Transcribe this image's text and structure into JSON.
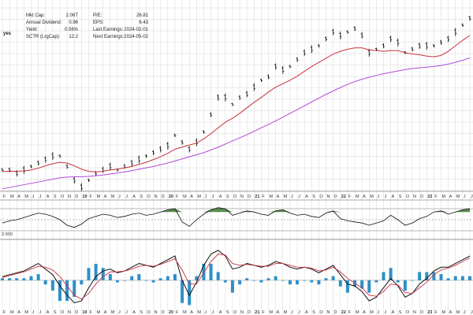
{
  "fundamentals": {
    "left": [
      {
        "label": "Mkt Cap:",
        "value": "2.06T"
      },
      {
        "label": "Annual Dividend:",
        "value": "0.96"
      },
      {
        "label": "Yield:",
        "value": "0.56%"
      },
      {
        "label": "SCTR (LrgCap):",
        "value": "12.2"
      }
    ],
    "right": [
      {
        "label": "P/E:",
        "value": "26.81"
      },
      {
        "label": "EPS:",
        "value": "6.43"
      },
      {
        "label": "Last Earnings:",
        "value": "2024-02-01"
      },
      {
        "label": "Next Earnings:",
        "value": "2024-05-02"
      }
    ],
    "fragment": "yes"
  },
  "macd_label_fragment": "2.000",
  "colors": {
    "price": "#111111",
    "ma_short": "#c8323c",
    "ma_long": "#b04bd9",
    "histogram": "#2f8fc6",
    "rsi_fill": "#3a7a2e",
    "grid": "#d6d6d6"
  },
  "chart_data": {
    "type": "line",
    "title": "",
    "x": [
      "2018-02",
      "2018-03",
      "2018-04",
      "2018-05",
      "2018-06",
      "2018-07",
      "2018-08",
      "2018-09",
      "2018-10",
      "2018-11",
      "2018-12",
      "2019-01",
      "2019-02",
      "2019-03",
      "2019-04",
      "2019-05",
      "2019-06",
      "2019-07",
      "2019-08",
      "2019-09",
      "2019-10",
      "2019-11",
      "2019-12",
      "2020-01",
      "2020-02",
      "2020-03",
      "2020-04",
      "2020-05",
      "2020-06",
      "2020-07",
      "2020-08",
      "2020-09",
      "2020-10",
      "2020-11",
      "2020-12",
      "2021-01",
      "2021-02",
      "2021-03",
      "2021-04",
      "2021-05",
      "2021-06",
      "2021-07",
      "2021-08",
      "2021-09",
      "2021-10",
      "2021-11",
      "2021-12",
      "2022-01",
      "2022-02",
      "2022-03",
      "2022-04",
      "2022-05",
      "2022-06",
      "2022-07",
      "2022-08",
      "2022-09",
      "2022-10",
      "2022-11",
      "2022-12",
      "2023-01",
      "2023-02",
      "2023-03",
      "2023-04",
      "2023-05",
      "2023-06",
      "2023-07"
    ],
    "x_ticks": [
      {
        "label": "F",
        "year": false
      },
      {
        "label": "M",
        "year": false
      },
      {
        "label": "A",
        "year": false
      },
      {
        "label": "M",
        "year": false
      },
      {
        "label": "J",
        "year": false
      },
      {
        "label": "J",
        "year": false
      },
      {
        "label": "A",
        "year": false
      },
      {
        "label": "S",
        "year": false
      },
      {
        "label": "O",
        "year": false
      },
      {
        "label": "N",
        "year": false
      },
      {
        "label": "D",
        "year": false
      },
      {
        "label": "19",
        "year": true
      },
      {
        "label": "F",
        "year": false
      },
      {
        "label": "M",
        "year": false
      },
      {
        "label": "A",
        "year": false
      },
      {
        "label": "M",
        "year": false
      },
      {
        "label": "J",
        "year": false
      },
      {
        "label": "J",
        "year": false
      },
      {
        "label": "A",
        "year": false
      },
      {
        "label": "S",
        "year": false
      },
      {
        "label": "O",
        "year": false
      },
      {
        "label": "N",
        "year": false
      },
      {
        "label": "D",
        "year": false
      },
      {
        "label": "20",
        "year": true
      },
      {
        "label": "F",
        "year": false
      },
      {
        "label": "M",
        "year": false
      },
      {
        "label": "A",
        "year": false
      },
      {
        "label": "M",
        "year": false
      },
      {
        "label": "J",
        "year": false
      },
      {
        "label": "J",
        "year": false
      },
      {
        "label": "A",
        "year": false
      },
      {
        "label": "S",
        "year": false
      },
      {
        "label": "O",
        "year": false
      },
      {
        "label": "N",
        "year": false
      },
      {
        "label": "D",
        "year": false
      },
      {
        "label": "21",
        "year": true
      },
      {
        "label": "F",
        "year": false
      },
      {
        "label": "M",
        "year": false
      },
      {
        "label": "A",
        "year": false
      },
      {
        "label": "M",
        "year": false
      },
      {
        "label": "J",
        "year": false
      },
      {
        "label": "J",
        "year": false
      },
      {
        "label": "A",
        "year": false
      },
      {
        "label": "S",
        "year": false
      },
      {
        "label": "O",
        "year": false
      },
      {
        "label": "N",
        "year": false
      },
      {
        "label": "D",
        "year": false
      },
      {
        "label": "22",
        "year": true
      },
      {
        "label": "F",
        "year": false
      },
      {
        "label": "M",
        "year": false
      },
      {
        "label": "A",
        "year": false
      },
      {
        "label": "M",
        "year": false
      },
      {
        "label": "J",
        "year": false
      },
      {
        "label": "J",
        "year": false
      },
      {
        "label": "A",
        "year": false
      },
      {
        "label": "S",
        "year": false
      },
      {
        "label": "O",
        "year": false
      },
      {
        "label": "N",
        "year": false
      },
      {
        "label": "D",
        "year": false
      },
      {
        "label": "23",
        "year": true
      },
      {
        "label": "F",
        "year": false
      },
      {
        "label": "M",
        "year": false
      },
      {
        "label": "A",
        "year": false
      },
      {
        "label": "M",
        "year": false
      },
      {
        "label": "J",
        "year": false
      },
      {
        "label": "J",
        "year": false
      }
    ],
    "series": [
      {
        "values": [
          6,
          6,
          5,
          6,
          7,
          8,
          9,
          10,
          10,
          7,
          3,
          1,
          3,
          5,
          6,
          7,
          6,
          7,
          8,
          9,
          10,
          11,
          12,
          13,
          16,
          14,
          12,
          14,
          17,
          22,
          27,
          27,
          25,
          27,
          28,
          30,
          32,
          33,
          36,
          35,
          36,
          38,
          40,
          41,
          42,
          44,
          46,
          45,
          46,
          47,
          45,
          40,
          41,
          42,
          44,
          43,
          40,
          41,
          42,
          42,
          42,
          43,
          44,
          46,
          48,
          50
        ]
      },
      {
        "values": [
          5.5,
          5.6,
          5.6,
          5.7,
          6,
          6.5,
          7.2,
          7.8,
          8.2,
          8,
          7.2,
          6.2,
          5.6,
          5.4,
          5.6,
          6,
          6.2,
          6.6,
          7,
          7.6,
          8.2,
          9,
          9.8,
          10.8,
          12,
          12.6,
          13.2,
          13.8,
          15,
          16.5,
          18.2,
          19.8,
          21,
          22.4,
          24,
          25.6,
          27,
          28.6,
          30,
          31,
          32,
          33.2,
          34.6,
          36,
          37.2,
          38.4,
          39.6,
          40.4,
          41,
          41.4,
          41.4,
          40.8,
          40.6,
          40.4,
          40.6,
          40.6,
          40,
          39.6,
          39.4,
          39,
          38.8,
          39.2,
          40.4,
          42,
          43.6,
          45
        ]
      },
      {
        "values": [
          0.5,
          0.9,
          1.3,
          1.7,
          2.1,
          2.5,
          2.9,
          3.3,
          3.7,
          3.9,
          4,
          4,
          4.1,
          4.3,
          4.5,
          4.8,
          5.1,
          5.4,
          5.8,
          6.2,
          6.6,
          7,
          7.5,
          8,
          8.6,
          9.2,
          9.8,
          10.4,
          11,
          11.8,
          12.6,
          13.5,
          14.4,
          15.3,
          16.2,
          17.2,
          18.2,
          19.2,
          20.2,
          21.3,
          22.4,
          23.5,
          24.6,
          25.7,
          26.8,
          27.9,
          28.9,
          29.9,
          30.8,
          31.6,
          32.3,
          32.9,
          33.4,
          33.9,
          34.3,
          34.7,
          35.1,
          35.4,
          35.6,
          35.8,
          36,
          36.3,
          36.7,
          37.2,
          37.8,
          38.5
        ]
      }
    ],
    "rsi": {
      "values": [
        44,
        48,
        50,
        54,
        58,
        62,
        60,
        56,
        50,
        40,
        36,
        42,
        52,
        56,
        60,
        58,
        54,
        56,
        60,
        62,
        58,
        60,
        64,
        68,
        70,
        46,
        38,
        50,
        60,
        68,
        72,
        70,
        58,
        62,
        66,
        64,
        60,
        58,
        66,
        68,
        62,
        58,
        60,
        56,
        54,
        62,
        66,
        52,
        48,
        46,
        44,
        40,
        44,
        48,
        58,
        50,
        40,
        44,
        52,
        56,
        64,
        66,
        60,
        64,
        68,
        70
      ],
      "ylim": [
        20,
        80
      ],
      "levels": [
        70,
        50,
        30
      ]
    },
    "macd": {
      "macd": [
        0.4,
        0.6,
        0.8,
        1.0,
        1.4,
        1.8,
        1.2,
        0.6,
        -0.6,
        -1.6,
        -2.4,
        -2.2,
        -0.8,
        0.4,
        1.0,
        1.2,
        0.8,
        1.0,
        1.4,
        1.8,
        1.6,
        1.4,
        1.8,
        2.2,
        2.6,
        0.0,
        -1.6,
        -0.2,
        1.6,
        2.8,
        3.2,
        2.6,
        1.2,
        1.4,
        1.8,
        1.6,
        1.4,
        1.6,
        2.0,
        1.8,
        1.4,
        1.2,
        1.4,
        1.2,
        0.8,
        1.2,
        1.6,
        0.6,
        -0.4,
        -0.6,
        -1.2,
        -2.2,
        -1.8,
        -0.8,
        0.2,
        -0.6,
        -1.8,
        -1.4,
        -0.4,
        0.2,
        1.0,
        1.4,
        1.4,
        1.8,
        2.2,
        2.6
      ],
      "signal": [
        0.3,
        0.5,
        0.7,
        0.9,
        1.2,
        1.5,
        1.4,
        1.1,
        0.4,
        -0.6,
        -1.6,
        -2.0,
        -1.4,
        -0.4,
        0.4,
        0.9,
        0.9,
        1.0,
        1.2,
        1.5,
        1.6,
        1.5,
        1.7,
        2.0,
        2.3,
        1.1,
        -0.4,
        -0.4,
        0.8,
        2.0,
        2.8,
        2.7,
        1.8,
        1.6,
        1.7,
        1.6,
        1.5,
        1.5,
        1.8,
        1.8,
        1.6,
        1.4,
        1.4,
        1.3,
        1.0,
        1.1,
        1.4,
        0.9,
        0.2,
        -0.3,
        -0.8,
        -1.6,
        -1.7,
        -1.2,
        -0.4,
        -0.5,
        -1.3,
        -1.4,
        -0.8,
        -0.2,
        0.6,
        1.1,
        1.3,
        1.6,
        2.0,
        2.4
      ],
      "ylim": [
        -3.2,
        4.2
      ]
    },
    "ylim": [
      0,
      53
    ]
  }
}
